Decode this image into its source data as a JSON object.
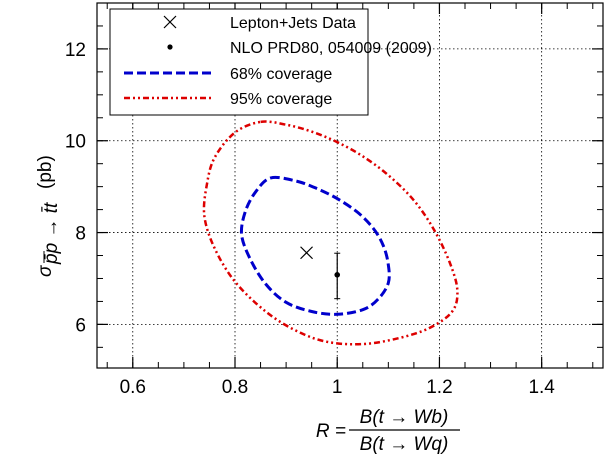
{
  "chart_data": {
    "type": "scatter",
    "xlim": [
      0.53,
      1.52
    ],
    "ylim": [
      5.05,
      13.0
    ],
    "x_ticks": [
      {
        "value": 0.6,
        "label": "0.6"
      },
      {
        "value": 0.8,
        "label": "0.8"
      },
      {
        "value": 1.0,
        "label": "1"
      },
      {
        "value": 1.2,
        "label": "1.2"
      },
      {
        "value": 1.4,
        "label": "1.4"
      }
    ],
    "y_ticks": [
      {
        "value": 6,
        "label": "6"
      },
      {
        "value": 8,
        "label": "8"
      },
      {
        "value": 10,
        "label": "10"
      },
      {
        "value": 12,
        "label": "12"
      }
    ],
    "x_minor_step": 0.05,
    "y_minor_step": 0.5,
    "grid": true,
    "xlabel": {
      "prefix": "R =",
      "numerator": "B(t → Wb)",
      "denominator": "B(t → Wq)"
    },
    "ylabel": {
      "symbol": "σ",
      "subscript": "p̄p → t̄t",
      "unit": "(pb)"
    },
    "legend_position": "top",
    "legend": [
      {
        "label": "Lepton+Jets Data",
        "marker": "x"
      },
      {
        "label": "NLO PRD80, 054009 (2009)",
        "marker": "dot"
      },
      {
        "label": "68% coverage",
        "style": "dashed"
      },
      {
        "label": "95% coverage",
        "style": "dash-dot"
      }
    ],
    "series": [
      {
        "name": "Lepton+Jets Data",
        "points": [
          {
            "x": 0.94,
            "y": 7.56
          }
        ],
        "color": "#000000"
      },
      {
        "name": "NLO PRD80, 054009 (2009)",
        "points": [
          {
            "x": 1.0,
            "y": 7.08,
            "y_low": 6.56,
            "y_high": 7.55
          }
        ],
        "color": "#000000"
      }
    ],
    "contours": [
      {
        "name": "68% coverage",
        "color": "#0000cc",
        "points": [
          [
            0.87,
            9.19
          ],
          [
            0.92,
            9.12
          ],
          [
            0.96,
            8.96
          ],
          [
            1.0,
            8.74
          ],
          [
            1.04,
            8.44
          ],
          [
            1.07,
            8.1
          ],
          [
            1.09,
            7.72
          ],
          [
            1.1,
            7.3
          ],
          [
            1.1,
            6.9
          ],
          [
            1.08,
            6.55
          ],
          [
            1.05,
            6.32
          ],
          [
            1.0,
            6.22
          ],
          [
            0.95,
            6.28
          ],
          [
            0.9,
            6.48
          ],
          [
            0.86,
            6.88
          ],
          [
            0.83,
            7.42
          ],
          [
            0.813,
            7.95
          ],
          [
            0.82,
            8.45
          ],
          [
            0.84,
            8.88
          ],
          [
            0.87,
            9.19
          ]
        ]
      },
      {
        "name": "95% coverage",
        "color": "#dd0000",
        "points": [
          [
            0.85,
            10.41
          ],
          [
            0.9,
            10.35
          ],
          [
            0.95,
            10.2
          ],
          [
            1.0,
            9.97
          ],
          [
            1.05,
            9.66
          ],
          [
            1.1,
            9.25
          ],
          [
            1.15,
            8.7
          ],
          [
            1.19,
            8.05
          ],
          [
            1.22,
            7.35
          ],
          [
            1.235,
            6.75
          ],
          [
            1.225,
            6.28
          ],
          [
            1.18,
            5.92
          ],
          [
            1.12,
            5.7
          ],
          [
            1.05,
            5.57
          ],
          [
            0.98,
            5.62
          ],
          [
            0.92,
            5.86
          ],
          [
            0.86,
            6.28
          ],
          [
            0.8,
            6.93
          ],
          [
            0.76,
            7.66
          ],
          [
            0.74,
            8.37
          ],
          [
            0.745,
            9.05
          ],
          [
            0.76,
            9.63
          ],
          [
            0.8,
            10.18
          ],
          [
            0.85,
            10.41
          ]
        ]
      }
    ]
  }
}
